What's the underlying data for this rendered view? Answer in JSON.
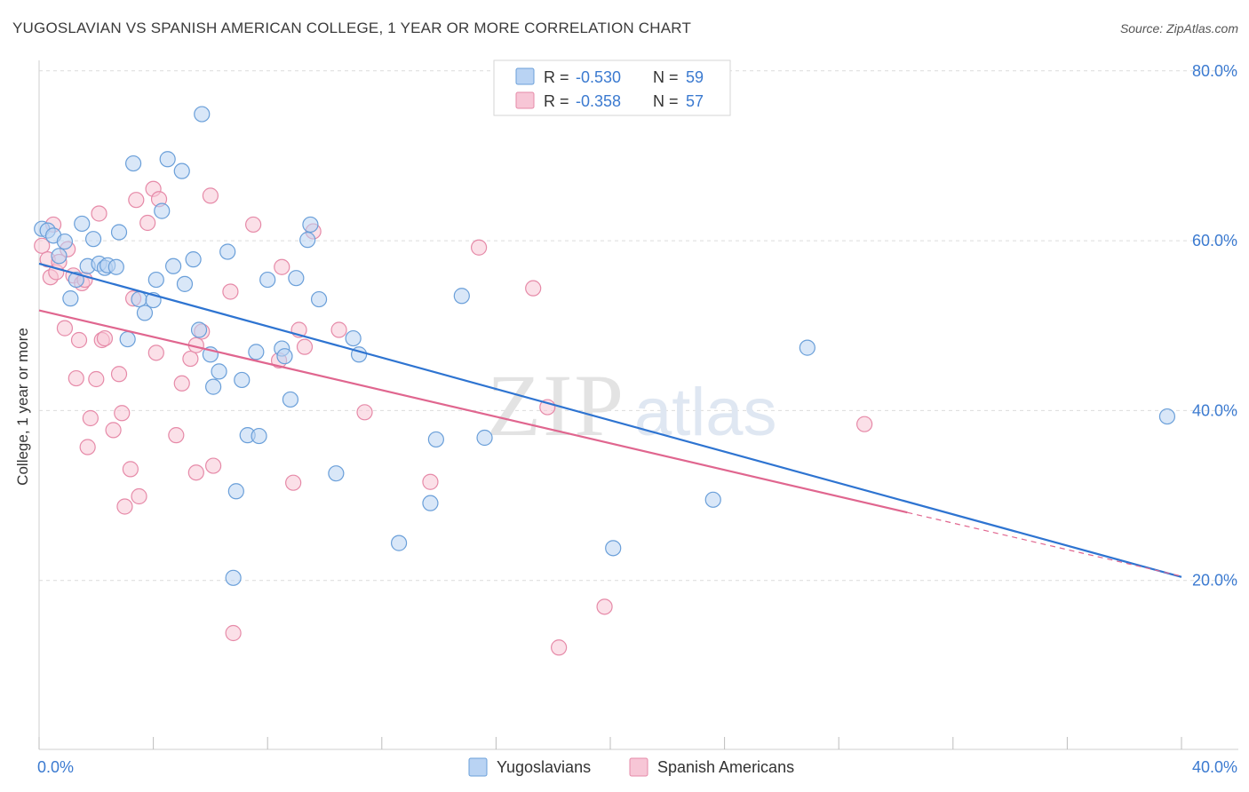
{
  "title": "YUGOSLAVIAN VS SPANISH AMERICAN COLLEGE, 1 YEAR OR MORE CORRELATION CHART",
  "source": "Source: ZipAtlas.com",
  "watermark": {
    "zip": "ZIP",
    "atlas": "atlas"
  },
  "colors": {
    "blue_fill": "#b9d3f3",
    "blue_stroke": "#6a9fd9",
    "blue_line": "#2e74d1",
    "pink_fill": "#f7c6d6",
    "pink_stroke": "#e68aa8",
    "pink_line": "#e0668f",
    "value_text": "#3b7ad0"
  },
  "legend_top": {
    "rows": [
      {
        "r_label": "R =",
        "r_value": "-0.530",
        "n_label": "N =",
        "n_value": "59",
        "series": "blue"
      },
      {
        "r_label": "R =",
        "r_value": "-0.358",
        "n_label": "N =",
        "n_value": "57",
        "series": "pink"
      }
    ]
  },
  "legend_bottom": {
    "items": [
      "Yugoslavians",
      "Spanish Americans"
    ]
  },
  "chart_data": {
    "type": "scatter",
    "xlabel": "",
    "ylabel": "College, 1 year or more",
    "xlim": [
      0,
      40
    ],
    "ylim": [
      0,
      82
    ],
    "x_tick_labels": [
      {
        "value": 0,
        "label": "0.0%"
      },
      {
        "value": 40,
        "label": "40.0%"
      }
    ],
    "y_tick_labels": [
      {
        "value": 20,
        "label": "20.0%"
      },
      {
        "value": 40,
        "label": "40.0%"
      },
      {
        "value": 60,
        "label": "60.0%"
      },
      {
        "value": 80,
        "label": "80.0%"
      }
    ],
    "grid": "horizontal dashed",
    "series": [
      {
        "name": "Yugoslavians",
        "color": "blue",
        "trend": {
          "x0": 0,
          "y0": 57.3,
          "x1": 40,
          "y1": 20.4
        },
        "points": [
          [
            0.1,
            61.4
          ],
          [
            0.3,
            61.2
          ],
          [
            0.5,
            60.6
          ],
          [
            0.7,
            58.2
          ],
          [
            0.9,
            59.9
          ],
          [
            1.1,
            53.2
          ],
          [
            1.3,
            55.4
          ],
          [
            1.5,
            62.0
          ],
          [
            1.7,
            57.0
          ],
          [
            1.9,
            60.2
          ],
          [
            2.1,
            57.3
          ],
          [
            2.3,
            56.8
          ],
          [
            2.4,
            57.1
          ],
          [
            2.7,
            56.9
          ],
          [
            2.8,
            61.0
          ],
          [
            3.1,
            48.4
          ],
          [
            3.3,
            69.1
          ],
          [
            3.5,
            53.1
          ],
          [
            3.7,
            51.5
          ],
          [
            4.0,
            53.0
          ],
          [
            4.1,
            55.4
          ],
          [
            4.3,
            63.5
          ],
          [
            4.5,
            69.6
          ],
          [
            4.7,
            57.0
          ],
          [
            5.0,
            68.2
          ],
          [
            5.1,
            54.9
          ],
          [
            5.4,
            57.8
          ],
          [
            5.6,
            49.5
          ],
          [
            5.7,
            74.9
          ],
          [
            6.0,
            46.6
          ],
          [
            6.1,
            42.8
          ],
          [
            6.3,
            44.6
          ],
          [
            6.6,
            58.7
          ],
          [
            6.8,
            20.3
          ],
          [
            6.9,
            30.5
          ],
          [
            7.1,
            43.6
          ],
          [
            7.3,
            37.1
          ],
          [
            7.6,
            46.9
          ],
          [
            7.7,
            37.0
          ],
          [
            8.0,
            55.4
          ],
          [
            8.5,
            47.3
          ],
          [
            8.6,
            46.4
          ],
          [
            8.8,
            41.3
          ],
          [
            9.0,
            55.6
          ],
          [
            9.4,
            60.1
          ],
          [
            9.5,
            61.9
          ],
          [
            9.8,
            53.1
          ],
          [
            10.4,
            32.6
          ],
          [
            11.0,
            48.5
          ],
          [
            11.2,
            46.6
          ],
          [
            12.6,
            24.4
          ],
          [
            13.7,
            29.1
          ],
          [
            13.9,
            36.6
          ],
          [
            14.8,
            53.5
          ],
          [
            15.6,
            36.8
          ],
          [
            20.1,
            23.8
          ],
          [
            23.6,
            29.5
          ],
          [
            26.9,
            47.4
          ],
          [
            39.5,
            39.3
          ]
        ]
      },
      {
        "name": "Spanish Americans",
        "color": "pink",
        "trend": {
          "x0": 0,
          "y0": 51.8,
          "x1": 30.4,
          "y1": 28.0
        },
        "trend_dashed_to": {
          "x": 40,
          "y": 20.5
        },
        "points": [
          [
            0.1,
            59.4
          ],
          [
            0.3,
            57.8
          ],
          [
            0.4,
            55.7
          ],
          [
            0.5,
            61.9
          ],
          [
            0.6,
            56.3
          ],
          [
            0.7,
            57.5
          ],
          [
            0.9,
            49.7
          ],
          [
            1.0,
            59.0
          ],
          [
            1.2,
            55.9
          ],
          [
            1.3,
            43.8
          ],
          [
            1.4,
            48.3
          ],
          [
            1.5,
            55.0
          ],
          [
            1.6,
            55.4
          ],
          [
            1.7,
            35.7
          ],
          [
            1.8,
            39.1
          ],
          [
            2.0,
            43.7
          ],
          [
            2.1,
            63.2
          ],
          [
            2.2,
            48.3
          ],
          [
            2.3,
            48.5
          ],
          [
            2.6,
            37.7
          ],
          [
            2.8,
            44.3
          ],
          [
            2.9,
            39.7
          ],
          [
            3.0,
            28.7
          ],
          [
            3.2,
            33.1
          ],
          [
            3.3,
            53.2
          ],
          [
            3.4,
            64.8
          ],
          [
            3.5,
            29.9
          ],
          [
            3.8,
            62.1
          ],
          [
            4.0,
            66.1
          ],
          [
            4.1,
            46.8
          ],
          [
            4.2,
            64.9
          ],
          [
            4.8,
            37.1
          ],
          [
            5.0,
            43.2
          ],
          [
            5.3,
            46.1
          ],
          [
            5.5,
            32.7
          ],
          [
            5.5,
            47.7
          ],
          [
            5.7,
            49.3
          ],
          [
            6.0,
            65.3
          ],
          [
            6.1,
            33.5
          ],
          [
            6.7,
            54.0
          ],
          [
            6.8,
            13.8
          ],
          [
            7.5,
            61.9
          ],
          [
            8.4,
            45.9
          ],
          [
            8.5,
            56.9
          ],
          [
            8.9,
            31.5
          ],
          [
            9.1,
            49.5
          ],
          [
            9.3,
            47.5
          ],
          [
            9.6,
            61.1
          ],
          [
            10.5,
            49.5
          ],
          [
            11.4,
            39.8
          ],
          [
            13.7,
            31.6
          ],
          [
            15.4,
            59.2
          ],
          [
            17.3,
            54.4
          ],
          [
            17.8,
            40.4
          ],
          [
            19.8,
            16.9
          ],
          [
            28.9,
            38.4
          ],
          [
            18.2,
            12.1
          ]
        ]
      }
    ]
  }
}
